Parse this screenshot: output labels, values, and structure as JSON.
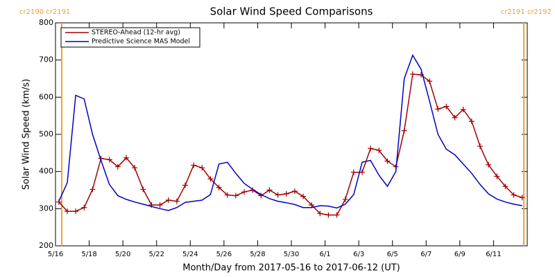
{
  "chart_data": {
    "type": "line",
    "title": "Solar Wind Speed Comparisons",
    "xlabel": "Month/Day from 2017-05-16 to 2017-06-12 (UT)",
    "ylabel": "Solar Wind Speed (km/s)",
    "x": [
      0.2,
      0.7,
      1.2,
      1.7,
      2.2,
      2.7,
      3.2,
      3.7,
      4.2,
      4.7,
      5.2,
      5.7,
      6.2,
      6.7,
      7.2,
      7.7,
      8.2,
      8.7,
      9.2,
      9.7,
      10.2,
      10.7,
      11.2,
      11.7,
      12.2,
      12.7,
      13.2,
      13.7,
      14.2,
      14.7,
      15.2,
      15.7,
      16.2,
      16.7,
      17.2,
      17.7,
      18.2,
      18.7,
      19.2,
      19.7,
      20.2,
      20.7,
      21.2,
      21.7,
      22.2,
      22.7,
      23.2,
      23.7,
      24.2,
      24.7,
      25.2,
      25.7,
      26.2,
      26.7,
      27.2,
      27.7
    ],
    "series": [
      {
        "name": "STEREO-Ahead (12-hr avg)",
        "color": "#a00000",
        "marker": "+",
        "values": [
          318,
          293,
          293,
          303,
          352,
          435,
          432,
          413,
          437,
          410,
          352,
          310,
          310,
          323,
          320,
          363,
          417,
          410,
          380,
          357,
          337,
          335,
          345,
          350,
          335,
          350,
          337,
          340,
          347,
          333,
          310,
          287,
          283,
          283,
          325,
          398,
          398,
          462,
          457,
          428,
          413,
          510,
          662,
          660,
          643,
          568,
          575,
          545,
          567,
          535,
          468,
          418,
          387,
          360,
          337,
          330
        ]
      },
      {
        "name": "Predictive Science MAS Model",
        "color": "#0000c0",
        "values": [
          320,
          370,
          605,
          595,
          500,
          430,
          365,
          335,
          325,
          318,
          312,
          306,
          300,
          295,
          303,
          317,
          320,
          323,
          338,
          420,
          425,
          395,
          368,
          352,
          338,
          327,
          320,
          316,
          311,
          303,
          303,
          308,
          307,
          302,
          312,
          338,
          425,
          430,
          390,
          360,
          400,
          650,
          713,
          675,
          590,
          500,
          460,
          445,
          420,
          395,
          365,
          340,
          326,
          318,
          312,
          308
        ]
      }
    ],
    "xlim": [
      0,
      28
    ],
    "xticks": [
      {
        "value": 0,
        "label": "5/16"
      },
      {
        "value": 2,
        "label": "5/18"
      },
      {
        "value": 4,
        "label": "5/20"
      },
      {
        "value": 6,
        "label": "5/22"
      },
      {
        "value": 8,
        "label": "5/24"
      },
      {
        "value": 10,
        "label": "5/26"
      },
      {
        "value": 12,
        "label": "5/28"
      },
      {
        "value": 14,
        "label": "5/30"
      },
      {
        "value": 16,
        "label": "6/1"
      },
      {
        "value": 18,
        "label": "6/3"
      },
      {
        "value": 20,
        "label": "6/5"
      },
      {
        "value": 22,
        "label": "6/7"
      },
      {
        "value": 24,
        "label": "6/9"
      },
      {
        "value": 26,
        "label": "6/11"
      }
    ],
    "ylim": [
      200,
      800
    ],
    "yticks": [
      200,
      300,
      400,
      500,
      600,
      700,
      800
    ],
    "boundaries": [
      {
        "x": 0.37,
        "label": "cr2190 cr2191",
        "color": "#f0a030"
      },
      {
        "x": 27.8,
        "label": "cr2191 cr2192",
        "color": "#f0a030"
      }
    ],
    "legend": "upper left"
  }
}
